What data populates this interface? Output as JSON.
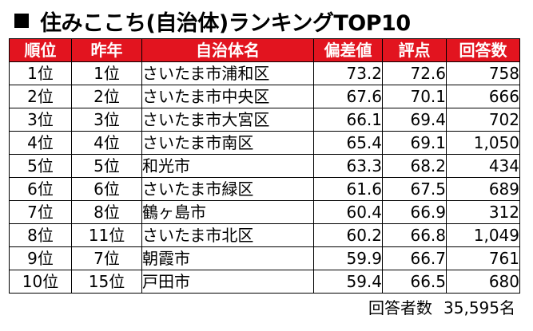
{
  "title": "住みここち(自治体)ランキングTOP10",
  "columns": [
    "順位",
    "昨年",
    "自治体名",
    "偏差値",
    "評点",
    "回答数"
  ],
  "rows": [
    {
      "rank": "1位",
      "last_year": "1位",
      "name": "さいたま市浦和区",
      "score": "73.2",
      "rating": "72.6",
      "count": "758"
    },
    {
      "rank": "2位",
      "last_year": "2位",
      "name": "さいたま市中央区",
      "score": "67.6",
      "rating": "70.1",
      "count": "666"
    },
    {
      "rank": "3位",
      "last_year": "3位",
      "name": "さいたま市大宮区",
      "score": "66.1",
      "rating": "69.4",
      "count": "702"
    },
    {
      "rank": "4位",
      "last_year": "4位",
      "name": "さいたま市南区",
      "score": "65.4",
      "rating": "69.1",
      "count": "1,050"
    },
    {
      "rank": "5位",
      "last_year": "5位",
      "name": "和光市",
      "score": "63.3",
      "rating": "68.2",
      "count": "434"
    },
    {
      "rank": "6位",
      "last_year": "6位",
      "name": "さいたま市緑区",
      "score": "61.6",
      "rating": "67.5",
      "count": "689"
    },
    {
      "rank": "7位",
      "last_year": "8位",
      "name": "鶴ヶ島市",
      "score": "60.4",
      "rating": "66.9",
      "count": "312"
    },
    {
      "rank": "8位",
      "last_year": "11位",
      "name": "さいたま市北区",
      "score": "60.2",
      "rating": "66.8",
      "count": "1,049"
    },
    {
      "rank": "9位",
      "last_year": "7位",
      "name": "朝霞市",
      "score": "59.9",
      "rating": "66.7",
      "count": "761"
    },
    {
      "rank": "10位",
      "last_year": "15位",
      "name": "戸田市",
      "score": "59.4",
      "rating": "66.5",
      "count": "680"
    }
  ],
  "footer": {
    "label": "回答者数",
    "value": "35,595名"
  },
  "colors": {
    "header_background": "#e2141f",
    "header_text": "#ffffff"
  }
}
